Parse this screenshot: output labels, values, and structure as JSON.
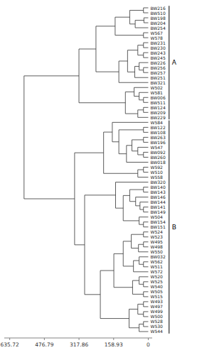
{
  "chart_data": {
    "type": "dendrogram",
    "labels": [
      "BW216",
      "BW510",
      "BW198",
      "BW204",
      "BW254",
      "W567",
      "W578",
      "BW231",
      "BW230",
      "BW243",
      "BW245",
      "BW226",
      "BW256",
      "BW257",
      "BW251",
      "BW321",
      "W502",
      "W581",
      "BW006",
      "BW511",
      "BW124",
      "BW209",
      "BW229",
      "W584",
      "BW122",
      "BW108",
      "BW263",
      "BW196",
      "W547",
      "BW092",
      "BW260",
      "BW018",
      "W592",
      "W510",
      "W558",
      "BW320",
      "BW140",
      "BW143",
      "BW146",
      "BW144",
      "BW141",
      "BW149",
      "W504",
      "BW154",
      "BW151",
      "W524",
      "W523",
      "W495",
      "W498",
      "W550",
      "BW032",
      "W562",
      "W511",
      "W572",
      "W520",
      "W525",
      "W540",
      "W505",
      "W515",
      "W493",
      "W497",
      "W499",
      "W500",
      "W528",
      "W530",
      "W544"
    ],
    "tree": {
      "left": {
        "left": {
          "left": {
            "left": {
              "left": {
                "left": 0,
                "right": 1,
                "height": 22
              },
              "right": {
                "left": {
                  "left": 2,
                  "right": 3,
                  "height": 20
                },
                "right": 4,
                "height": 60
              },
              "height": 85
            },
            "right": {
              "left": 5,
              "right": 6,
              "height": 22
            },
            "height": 152
          },
          "right": {
            "left": {
              "left": {
                "left": {
                  "left": 7,
                  "right": 8,
                  "height": 22
                },
                "right": {
                  "left": 9,
                  "right": 10,
                  "height": 22
                },
                "height": 48
              },
              "right": {
                "left": {
                  "left": 11,
                  "right": {
                    "left": 12,
                    "right": 13,
                    "height": 22
                  },
                  "height": 42
                },
                "right": 14,
                "height": 62
              },
              "height": 95
            },
            "right": 15,
            "height": 135
          },
          "height": 240
        },
        "right": {
          "left": {
            "left": 16,
            "right": {
              "left": 17,
              "right": {
                "left": 18,
                "right": 19,
                "height": 22
              },
              "height": 42
            },
            "height": 65
          },
          "right": {
            "left": {
              "left": 20,
              "right": 21,
              "height": 22
            },
            "right": 22,
            "height": 48
          },
          "height": 105
        },
        "height": 318
      },
      "right": {
        "left": {
          "left": {
            "left": 23,
            "right": {
              "left": {
                "left": 24,
                "right": 25,
                "height": 22
              },
              "right": {
                "left": {
                  "left": {
                    "left": 26,
                    "right": 27,
                    "height": 22
                  },
                  "right": {
                    "left": 28,
                    "right": {
                      "left": 29,
                      "right": 30,
                      "height": 22
                    },
                    "height": 48
                  },
                  "height": 75
                },
                "right": 31,
                "height": 100
              },
              "height": 135
            },
            "height": 165
          },
          "right": {
            "left": {
              "left": 32,
              "right": 33,
              "height": 22
            },
            "right": 34,
            "height": 48
          },
          "height": 205
        },
        "right": {
          "left": {
            "left": 35,
            "right": {
              "left": {
                "left": {
                  "left": 36,
                  "right": 37,
                  "height": 22
                },
                "right": {
                  "left": 38,
                  "right": {
                    "left": 39,
                    "right": {
                      "left": 40,
                      "right": 41,
                      "height": 22
                    },
                    "height": 38
                  },
                  "height": 58
                },
                "height": 85
              },
              "right": {
                "left": 42,
                "right": {
                  "left": 43,
                  "right": 44,
                  "height": 22
                },
                "height": 42
              },
              "height": 115
            },
            "height": 150
          },
          "right": {
            "left": {
              "left": {
                "left": {
                  "left": {
                    "left": 45,
                    "right": 46,
                    "height": 22
                  },
                  "right": {
                    "left": {
                      "left": 47,
                      "right": 48,
                      "height": 22
                    },
                    "right": 49,
                    "height": 45
                  },
                  "height": 78
                },
                "right": {
                  "left": {
                    "left": 50,
                    "right": {
                      "left": 51,
                      "right": 52,
                      "height": 22
                    },
                    "height": 42
                  },
                  "right": 53,
                  "height": 68
                },
                "height": 115
              },
              "right": {
                "left": {
                  "left": 54,
                  "right": {
                    "left": 55,
                    "right": 56,
                    "height": 22
                  },
                  "height": 42
                },
                "right": {
                  "left": 57,
                  "right": 58,
                  "height": 22
                },
                "height": 72
              },
              "height": 158
            },
            "right": {
              "left": {
                "left": {
                  "left": 59,
                  "right": 60,
                  "height": 22
                },
                "right": {
                  "left": 61,
                  "right": 62,
                  "height": 22
                },
                "height": 48
              },
              "right": {
                "left": {
                  "left": 63,
                  "right": 64,
                  "height": 22
                },
                "right": 65,
                "height": 42
              },
              "height": 88
            },
            "height": 220
          },
          "height": 292
        },
        "height": 338
      },
      "height": 570
    },
    "groups": [
      {
        "label": "A",
        "leaves": [
          0,
          22
        ]
      },
      {
        "label": "B",
        "leaves": [
          23,
          65
        ]
      }
    ],
    "xlim": [
      660.72,
      -18
    ],
    "xticks": [
      635.72,
      476.79,
      317.86,
      158.93,
      0
    ]
  }
}
